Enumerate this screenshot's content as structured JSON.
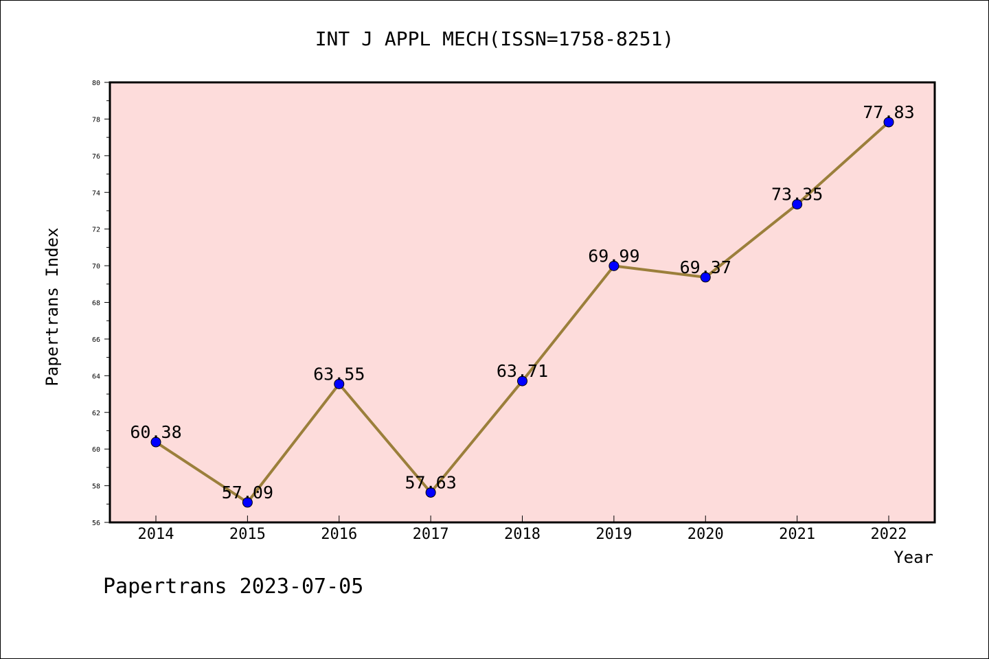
{
  "chart_data": {
    "type": "line",
    "title": "INT J APPL MECH(ISSN=1758-8251)",
    "xlabel": "Year",
    "ylabel": "Papertrans Index",
    "categories": [
      "2014",
      "2015",
      "2016",
      "2017",
      "2018",
      "2019",
      "2020",
      "2021",
      "2022"
    ],
    "series": [
      {
        "values": [
          60.38,
          57.09,
          63.55,
          57.63,
          63.71,
          69.99,
          69.37,
          73.35,
          77.83
        ]
      }
    ],
    "data_labels": [
      "60.38",
      "57.09",
      "63.55",
      "57.63",
      "63.71",
      "69.99",
      "69.37",
      "73.35",
      "77.83"
    ],
    "ylim": [
      56,
      80
    ],
    "y_ticks": [
      "56",
      "58",
      "60",
      "62",
      "64",
      "66",
      "68",
      "70",
      "72",
      "74",
      "76",
      "78",
      "80"
    ],
    "grid": false,
    "legend": "none",
    "footer": "Papertrans 2023-07-05",
    "colors": {
      "plot_background": "#fddcdb",
      "line": "#9b7f3b",
      "marker": "#0000ff",
      "axis": "#000000"
    }
  }
}
